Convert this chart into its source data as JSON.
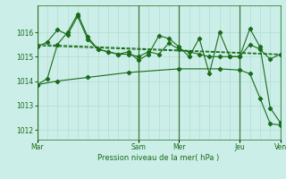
{
  "bg_color": "#cceee8",
  "grid_color": "#aad8d0",
  "line_color": "#1a6b1a",
  "xlabel": "Pression niveau de la mer( hPa )",
  "ylim": [
    1011.6,
    1017.1
  ],
  "yticks": [
    1012,
    1013,
    1014,
    1015,
    1016
  ],
  "xtick_labels": [
    "Mar",
    "Sam",
    "Mer",
    "Jeu",
    "Ven"
  ],
  "xtick_positions": [
    0,
    40,
    56,
    80,
    96
  ],
  "vline_positions": [
    0,
    40,
    56,
    80,
    96
  ],
  "line1_x": [
    0,
    4,
    8,
    12,
    16,
    20,
    24,
    28,
    32,
    36,
    40,
    44,
    48,
    52,
    56,
    60,
    64,
    68,
    72,
    76,
    80,
    84,
    88,
    92,
    96
  ],
  "line1_y": [
    1013.85,
    1014.1,
    1015.5,
    1016.0,
    1016.75,
    1015.8,
    1015.3,
    1015.2,
    1015.1,
    1015.2,
    1014.85,
    1015.1,
    1015.85,
    1015.75,
    1015.4,
    1015.0,
    1015.75,
    1014.3,
    1016.0,
    1015.0,
    1015.0,
    1016.15,
    1015.4,
    1012.9,
    1012.3
  ],
  "line2_x": [
    0,
    4,
    8,
    12,
    16,
    20,
    24,
    28,
    32,
    36,
    40,
    44,
    48,
    52,
    56,
    60,
    64,
    68,
    72,
    76,
    80,
    84,
    88,
    92,
    96
  ],
  "line2_y": [
    1015.4,
    1015.6,
    1016.1,
    1015.9,
    1016.65,
    1015.7,
    1015.3,
    1015.2,
    1015.1,
    1015.1,
    1015.0,
    1015.2,
    1015.1,
    1015.55,
    1015.3,
    1015.2,
    1015.1,
    1015.0,
    1015.0,
    1015.0,
    1015.0,
    1015.5,
    1015.3,
    1014.9,
    1015.1
  ],
  "trend1_x": [
    0,
    96
  ],
  "trend1_y": [
    1015.5,
    1015.1
  ],
  "trend2_x": [
    0,
    96
  ],
  "trend2_y": [
    1015.45,
    1015.08
  ],
  "decline_x": [
    0,
    8,
    20,
    36,
    56,
    72,
    80,
    84,
    88,
    92,
    96
  ],
  "decline_y": [
    1013.85,
    1014.0,
    1014.15,
    1014.35,
    1014.5,
    1014.5,
    1014.45,
    1014.3,
    1013.3,
    1012.25,
    1012.2
  ],
  "marker_style": "D",
  "marker_size": 2.2
}
